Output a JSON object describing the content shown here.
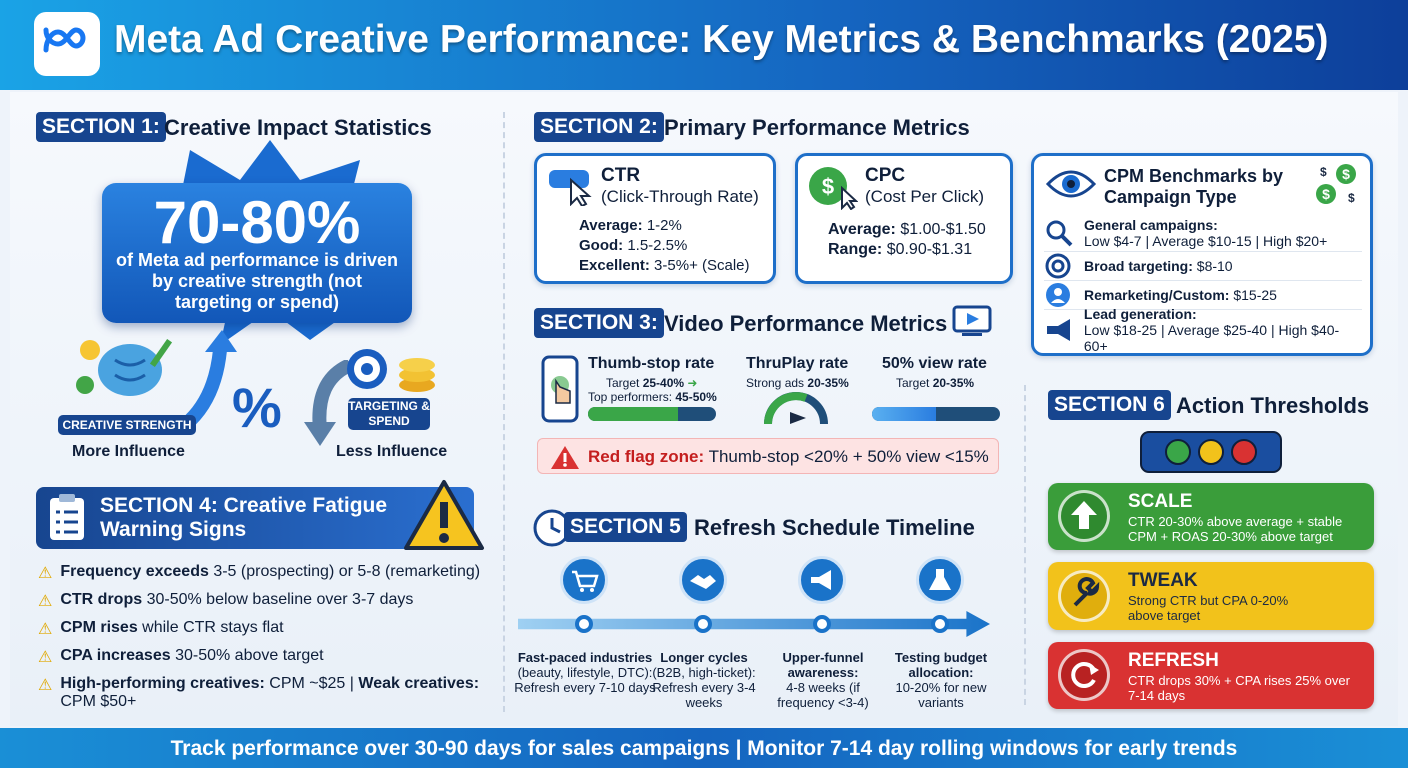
{
  "header": {
    "title": "Meta Ad Creative Performance: Key Metrics & Benchmarks (2025)",
    "logo_icon": "meta-infinity-logo"
  },
  "section1": {
    "tag": "SECTION 1:",
    "title": "Creative Impact Statistics",
    "big_stat": "70-80%",
    "big_sub": "of Meta ad performance is driven by creative strength (not targeting or spend)",
    "creative_pill": "CREATIVE STRENGTH",
    "targeting_pill": "TARGETING & SPEND",
    "more_label": "More Influence",
    "less_label": "Less Influence",
    "percent_symbol": "%"
  },
  "section2": {
    "tag": "SECTION 2:",
    "title": "Primary Performance Metrics",
    "ctr": {
      "title": "CTR",
      "subtitle": "(Click-Through Rate)",
      "rows": [
        {
          "k": "Average:",
          "v": "1-2%"
        },
        {
          "k": "Good:",
          "v": "1.5-2.5%"
        },
        {
          "k": "Excellent:",
          "v": "3-5%+ (Scale)"
        }
      ]
    },
    "cpc": {
      "title": "CPC",
      "subtitle": "(Cost Per Click)",
      "rows": [
        {
          "k": "Average:",
          "v": "$1.00-$1.50"
        },
        {
          "k": "Range:",
          "v": "$0.90-$1.31"
        }
      ]
    },
    "cpm": {
      "title": "CPM Benchmarks by Campaign Type",
      "rows": [
        {
          "icon": "search-icon",
          "k": "General campaigns:",
          "v": "Low $4-7 | Average $10-15 | High $20+"
        },
        {
          "icon": "target-icon",
          "k": "Broad targeting:",
          "v": "$8-10"
        },
        {
          "icon": "user-icon",
          "k": "Remarketing/Custom:",
          "v": "$15-25"
        },
        {
          "icon": "megaphone-icon",
          "k": "Lead generation:",
          "v": "Low $18-25 | Average $25-40 | High $40-60+"
        }
      ]
    }
  },
  "section3": {
    "tag": "SECTION 3:",
    "title": "Video Performance Metrics",
    "thumbstop": {
      "title": "Thumb-stop rate",
      "target_label": "Target",
      "target": "25-40%",
      "top_label": "Top performers:",
      "top": "45-50%",
      "fill": 0.7
    },
    "thruplay": {
      "title": "ThruPlay rate",
      "label": "Strong ads",
      "value": "20-35%"
    },
    "view50": {
      "title": "50% view rate",
      "label": "Target",
      "value": "20-35%",
      "fill": 0.5
    },
    "redflag": {
      "label": "Red flag zone:",
      "text": "Thumb-stop <20% + 50% view <15%"
    }
  },
  "section4": {
    "title": "SECTION 4: Creative Fatigue Warning Signs",
    "items": [
      {
        "b": "Frequency exceeds",
        "t": "3-5 (prospecting) or 5-8 (remarketing)"
      },
      {
        "b": "CTR drops",
        "t": "30-50% below baseline over 3-7 days"
      },
      {
        "b": "CPM rises",
        "t": "while CTR stays flat"
      },
      {
        "b": "CPA increases",
        "t": "30-50% above target"
      },
      {
        "b": "High-performing creatives:",
        "t": "CPM ~$25 |",
        "b2": "Weak creatives:",
        "t2": "CPM $50+"
      }
    ]
  },
  "section5": {
    "tag": "SECTION 5",
    "title": "Refresh Schedule Timeline",
    "steps": [
      {
        "icon": "cart-icon",
        "b": "Fast-paced industries",
        "t": "(beauty, lifestyle, DTC): Refresh every 7-10 days"
      },
      {
        "icon": "handshake-icon",
        "b": "Longer cycles",
        "t": "(B2B, high-ticket): Refresh every 3-4 weeks"
      },
      {
        "icon": "megaphone-icon",
        "b": "Upper-funnel awareness:",
        "t": "4-8 weeks (if frequency <3-4)"
      },
      {
        "icon": "flask-icon",
        "b": "Testing budget allocation:",
        "t": "10-20% for new variants"
      }
    ]
  },
  "section6": {
    "tag": "SECTION 6",
    "title": "Action Thresholds",
    "actions": [
      {
        "label": "SCALE",
        "text": "CTR 20-30% above average + stable CPM + ROAS 20-30% above target",
        "color": "#3a9d3a",
        "icon": "arrow-up-icon"
      },
      {
        "label": "TWEAK",
        "text": "Strong CTR but CPA 0-20% above target",
        "color": "#f2c21b",
        "icon": "wrench-icon"
      },
      {
        "label": "REFRESH",
        "text": "CTR drops 30% + CPA rises 25% over 7-14 days",
        "color": "#d93232",
        "icon": "refresh-icon"
      }
    ]
  },
  "footer": {
    "text": "Track performance over 30-90 days for sales campaigns | Monitor 7-14 day rolling windows for early trends"
  }
}
